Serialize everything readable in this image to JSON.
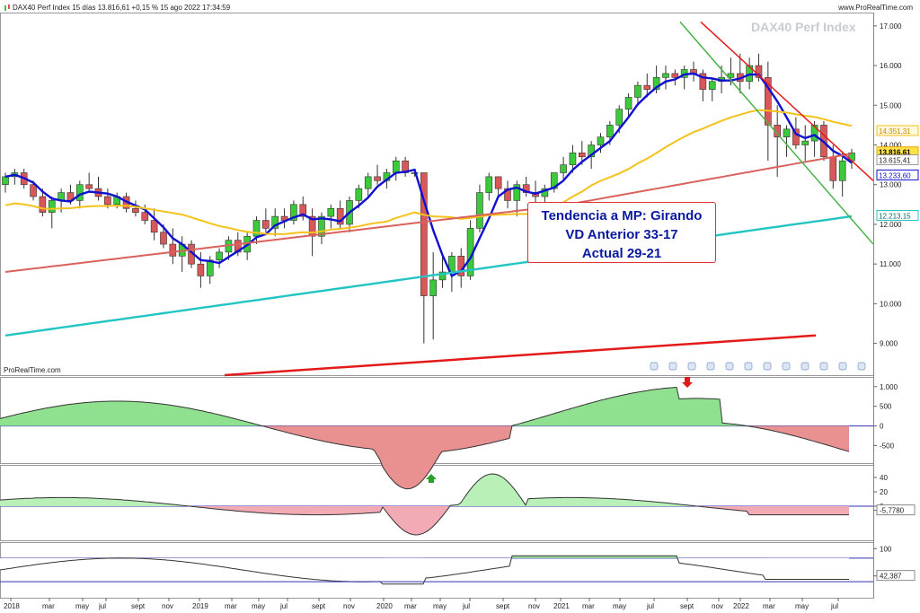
{
  "header": {
    "title": "DAX40 Perf Index 15 días 13.816,61 +0,15 % 15 ago 2022 17:34:59",
    "brand": "www.ProRealTime.com",
    "watermark": "DAX40 Perf Index",
    "footer_brand": "ProRealTime.com"
  },
  "annotation": {
    "lines": [
      "Tendencia a MP: Girando",
      "VD Anterior 33-17",
      "Actual 29-21"
    ]
  },
  "colors": {
    "up": "#3cc93c",
    "down": "#d85858",
    "ma_fast": "#1010d0",
    "ma_mid": "#f5c21a",
    "ma_slow": "#d9625e",
    "ma_long": "#23c4c4",
    "trend_red": "#e41a1a",
    "trend_green": "#47b447"
  },
  "chart_data": {
    "type": "candlestick",
    "x_ticks": [
      "2018",
      "mar",
      "may",
      "jul",
      "sept",
      "nov",
      "2019",
      "mar",
      "may",
      "jul",
      "sept",
      "nov",
      "2020",
      "mar",
      "may",
      "jul",
      "sept",
      "nov",
      "2021",
      "mar",
      "may",
      "jul",
      "sept",
      "nov",
      "2022",
      "mar",
      "may",
      "jul"
    ],
    "price_axis": {
      "ylim": [
        8200,
        17200
      ],
      "ticks": [
        "17.000",
        "16.000",
        "15.000",
        "14.000",
        "13.000",
        "12.000",
        "11.000",
        "10.000",
        "9.000"
      ]
    },
    "price_labels": {
      "last": "13.816,61",
      "ma_mid": "14.351,31",
      "level2": "13.615,41",
      "ma_fast": "13.233,60",
      "ma_long": "12.213,15"
    },
    "candles": [
      [
        13000,
        13300,
        12800,
        13200
      ],
      [
        13200,
        13400,
        13000,
        13300
      ],
      [
        13300,
        13400,
        12900,
        13000
      ],
      [
        13000,
        13100,
        12600,
        12700
      ],
      [
        12700,
        12900,
        12200,
        12300
      ],
      [
        12300,
        12700,
        11900,
        12600
      ],
      [
        12600,
        12900,
        12300,
        12800
      ],
      [
        12800,
        13000,
        12500,
        12600
      ],
      [
        12600,
        13100,
        12400,
        13000
      ],
      [
        13000,
        13300,
        12800,
        12900
      ],
      [
        12900,
        13200,
        12600,
        12700
      ],
      [
        12700,
        12900,
        12400,
        12500
      ],
      [
        12500,
        12800,
        12400,
        12700
      ],
      [
        12700,
        12800,
        12300,
        12400
      ],
      [
        12400,
        12600,
        12200,
        12300
      ],
      [
        12300,
        12500,
        12000,
        12100
      ],
      [
        12100,
        12400,
        11600,
        11800
      ],
      [
        11800,
        12000,
        11400,
        11500
      ],
      [
        11500,
        11900,
        11000,
        11200
      ],
      [
        11200,
        11700,
        10800,
        11500
      ],
      [
        11500,
        11600,
        10900,
        11000
      ],
      [
        11000,
        11300,
        10400,
        10700
      ],
      [
        10700,
        11200,
        10500,
        11100
      ],
      [
        11100,
        11400,
        10900,
        11300
      ],
      [
        11300,
        11700,
        11100,
        11600
      ],
      [
        11600,
        11800,
        11200,
        11300
      ],
      [
        11300,
        11800,
        11100,
        11700
      ],
      [
        11700,
        12200,
        11500,
        12100
      ],
      [
        12100,
        12400,
        11800,
        11900
      ],
      [
        11900,
        12400,
        11700,
        12200
      ],
      [
        12200,
        12400,
        11900,
        12100
      ],
      [
        12100,
        12600,
        12000,
        12500
      ],
      [
        12500,
        12700,
        12100,
        12200
      ],
      [
        12200,
        12400,
        11200,
        11700
      ],
      [
        11700,
        12300,
        11500,
        12200
      ],
      [
        12200,
        12500,
        11900,
        12400
      ],
      [
        12400,
        12600,
        11900,
        12000
      ],
      [
        12000,
        12700,
        11800,
        12600
      ],
      [
        12600,
        13000,
        12400,
        12900
      ],
      [
        12900,
        13300,
        12700,
        13200
      ],
      [
        13200,
        13500,
        13000,
        13100
      ],
      [
        13100,
        13400,
        12900,
        13300
      ],
      [
        13300,
        13700,
        13100,
        13600
      ],
      [
        13600,
        13700,
        13200,
        13300
      ],
      [
        13300,
        13400,
        13200,
        13300
      ],
      [
        13300,
        13300,
        9000,
        10200
      ],
      [
        10200,
        11300,
        9100,
        10600
      ],
      [
        10600,
        11200,
        10400,
        10800
      ],
      [
        10800,
        11300,
        10300,
        11200
      ],
      [
        11200,
        11400,
        10400,
        10700
      ],
      [
        10700,
        12100,
        10600,
        11900
      ],
      [
        11900,
        13000,
        11800,
        12800
      ],
      [
        12800,
        13300,
        12600,
        13200
      ],
      [
        13200,
        13200,
        12700,
        12900
      ],
      [
        12900,
        13100,
        12400,
        12600
      ],
      [
        12600,
        13100,
        12200,
        13000
      ],
      [
        13000,
        13200,
        12700,
        12800
      ],
      [
        12800,
        13100,
        12500,
        12700
      ],
      [
        12700,
        13000,
        12400,
        12900
      ],
      [
        12900,
        13300,
        12800,
        13300
      ],
      [
        13300,
        13700,
        13100,
        13500
      ],
      [
        13500,
        14000,
        13300,
        13800
      ],
      [
        13800,
        14100,
        13500,
        13700
      ],
      [
        13700,
        14100,
        13400,
        14000
      ],
      [
        14000,
        14300,
        13800,
        14200
      ],
      [
        14200,
        14600,
        14000,
        14500
      ],
      [
        14500,
        15000,
        14300,
        14900
      ],
      [
        14900,
        15300,
        14700,
        15200
      ],
      [
        15200,
        15600,
        15000,
        15500
      ],
      [
        15500,
        15800,
        15200,
        15400
      ],
      [
        15400,
        16000,
        15300,
        15700
      ],
      [
        15700,
        16000,
        15400,
        15800
      ],
      [
        15800,
        15900,
        15500,
        15700
      ],
      [
        15700,
        16000,
        15400,
        15900
      ],
      [
        15900,
        16100,
        15600,
        15800
      ],
      [
        15800,
        15900,
        15100,
        15400
      ],
      [
        15400,
        15700,
        15100,
        15600
      ],
      [
        15600,
        16000,
        15300,
        15700
      ],
      [
        15700,
        16200,
        15500,
        15800
      ],
      [
        15800,
        16300,
        15300,
        15600
      ],
      [
        15600,
        16200,
        15400,
        16000
      ],
      [
        16000,
        16300,
        15600,
        15700
      ],
      [
        15700,
        16100,
        13600,
        14500
      ],
      [
        14500,
        15000,
        13200,
        14200
      ],
      [
        14200,
        14500,
        13700,
        14400
      ],
      [
        14400,
        14700,
        13900,
        14000
      ],
      [
        14000,
        14500,
        13600,
        14100
      ],
      [
        14100,
        14600,
        13700,
        14500
      ],
      [
        14500,
        14600,
        13600,
        13700
      ],
      [
        13700,
        14000,
        12900,
        13100
      ],
      [
        13100,
        13800,
        12700,
        13600
      ],
      [
        13600,
        13900,
        13400,
        13800
      ]
    ],
    "oscillator_1": {
      "ticks": [
        "1.000",
        "500",
        "0",
        "-500"
      ],
      "ylim": [
        -900,
        1200
      ]
    },
    "oscillator_2": {
      "ticks": [
        "40",
        "20",
        "0",
        "-5,7780"
      ],
      "ylim": [
        -45,
        55
      ]
    },
    "oscillator_3": {
      "ticks": [
        "100",
        "42,387"
      ],
      "ylim": [
        0,
        110
      ]
    }
  }
}
